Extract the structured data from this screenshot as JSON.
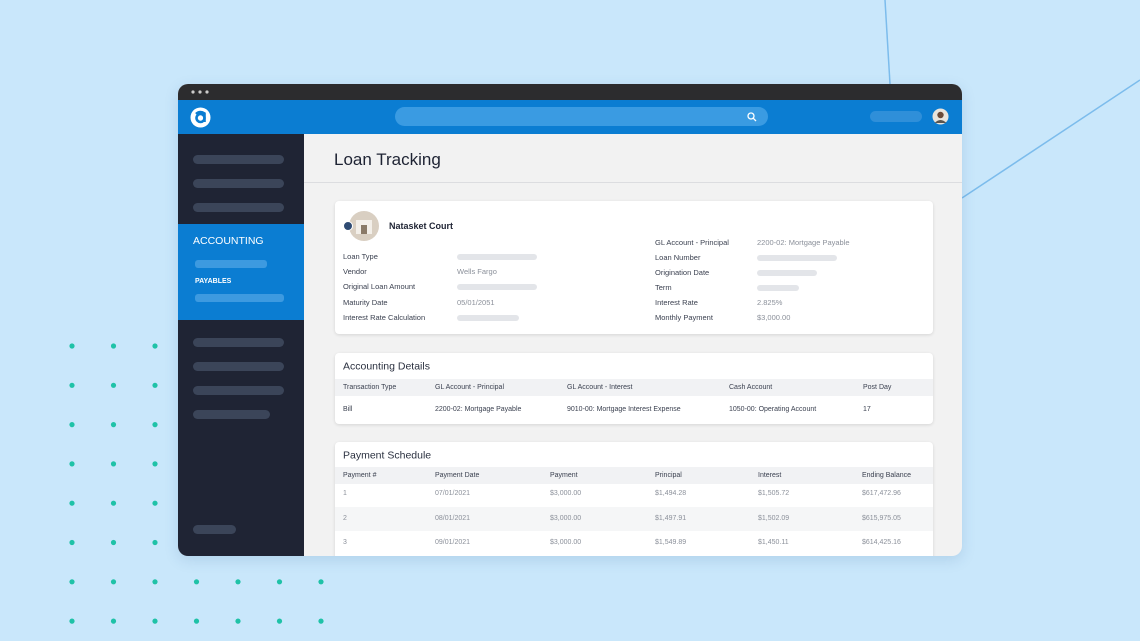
{
  "header": {
    "title": "Loan Tracking"
  },
  "sidebar": {
    "section": "ACCOUNTING",
    "item": "PAYABLES"
  },
  "loan": {
    "name": "Natasket Court",
    "left": [
      {
        "label": "Loan Type"
      },
      {
        "label": "Vendor",
        "value": "Wells Fargo"
      },
      {
        "label": "Original Loan Amount"
      },
      {
        "label": "Maturity Date",
        "value": "05/01/2051"
      },
      {
        "label": "Interest Rate Calculation"
      }
    ],
    "right": [
      {
        "label": "GL Account - Principal",
        "value": "2200-02: Mortgage Payable"
      },
      {
        "label": "Loan Number"
      },
      {
        "label": "Origination Date"
      },
      {
        "label": "Term"
      },
      {
        "label": "Interest Rate",
        "value": "2.825%"
      },
      {
        "label": "Monthly Payment",
        "value": "$3,000.00"
      }
    ]
  },
  "accounting": {
    "title": "Accounting Details",
    "columns": [
      "Transaction Type",
      "GL Account - Principal",
      "GL Account - Interest",
      "Cash Account",
      "Post Day"
    ],
    "rows": [
      [
        "Bill",
        "2200-02: Mortgage Payable",
        "9010-00: Mortgage Interest Expense",
        "1050-00: Operating Account",
        "17"
      ]
    ]
  },
  "schedule": {
    "title": "Payment Schedule",
    "columns": [
      "Payment #",
      "Payment Date",
      "Payment",
      "Principal",
      "Interest",
      "Ending Balance"
    ],
    "rows": [
      [
        "1",
        "07/01/2021",
        "$3,000.00",
        "$1,494.28",
        "$1,505.72",
        "$617,472.96"
      ],
      [
        "2",
        "08/01/2021",
        "$3,000.00",
        "$1,497.91",
        "$1,502.09",
        "$615,975.05"
      ],
      [
        "3",
        "09/01/2021",
        "$3,000.00",
        "$1,549.89",
        "$1,450.11",
        "$614,425.16"
      ]
    ]
  }
}
